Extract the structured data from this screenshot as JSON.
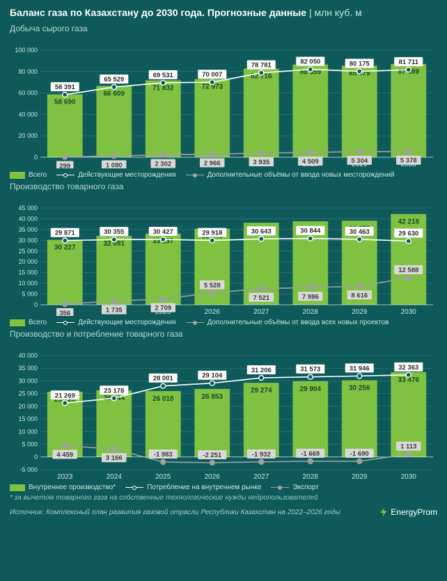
{
  "colors": {
    "bg": "#0e5a5a",
    "bar": "#7fc241",
    "bar_text": "#1a4a2a",
    "line_white": "#ffffff",
    "line_gray": "#a0a0a0",
    "grid": "#377a78",
    "axis_text": "#c8e6e0",
    "label_box": "#ffffff",
    "label_text": "#2a2a2a",
    "gray_label_text": "#3a3a3a",
    "footnote": "#8fc9c1"
  },
  "header": {
    "title_bold": "Баланс газа по Казахстану до 2030 года. Прогнозные данные",
    "title_unit": "млн куб. м"
  },
  "categories": [
    "2023",
    "2024",
    "2025",
    "2026",
    "2027",
    "2028",
    "2029",
    "2030"
  ],
  "chart1": {
    "title": "Добыча сырого газа",
    "ylim": [
      0,
      100000
    ],
    "ytick_step": 20000,
    "bars": [
      58690,
      66609,
      71832,
      72973,
      82716,
      86559,
      85479,
      87089
    ],
    "line_white": [
      58391,
      65529,
      69531,
      70007,
      78781,
      82050,
      80175,
      81711
    ],
    "line_gray": [
      299,
      1080,
      2302,
      2966,
      3935,
      4509,
      5304,
      5378
    ],
    "legend": {
      "bar": "Всего",
      "white": "Действующие месторождения",
      "gray": "Дополнительные объёмы от ввода новых месторождений"
    }
  },
  "chart2": {
    "title": "Производство товарного газа",
    "ylim": [
      0,
      45000
    ],
    "ytick_step": 5000,
    "bars": [
      30227,
      32091,
      33137,
      35446,
      38164,
      38830,
      39079,
      42218
    ],
    "line_white": [
      29871,
      30355,
      30427,
      29918,
      30643,
      30844,
      30463,
      29630
    ],
    "line_gray": [
      356,
      1735,
      2709,
      5528,
      7521,
      7986,
      8616,
      12588
    ],
    "legend": {
      "bar": "Всего",
      "white": "Действующие месторождения",
      "gray": "Дополнительные объёмы от ввода всех новых проектов"
    }
  },
  "chart3": {
    "title": "Производство и потребление товарного газа",
    "ylim": [
      -5000,
      40000
    ],
    "ytick_step": 5000,
    "bars": [
      25728,
      26344,
      26018,
      26853,
      29274,
      29904,
      30256,
      33476
    ],
    "line_white": [
      21269,
      23178,
      28001,
      29104,
      31206,
      31573,
      31946,
      32363
    ],
    "line_gray": [
      4459,
      3166,
      -1983,
      -2251,
      -1932,
      -1669,
      -1690,
      1113
    ],
    "legend": {
      "bar": "Внутреннее производство*",
      "white": "Потребление на внутреннем рынке",
      "gray": "Экспорт"
    }
  },
  "footnote": "* за вычетом товарного газа на собственные технологические нужды недропользователей",
  "source": "Источник: Комплексный план развития газовой отрасли Республики Казахстан на 2022–2026 годы",
  "logo": "EnergyProm"
}
